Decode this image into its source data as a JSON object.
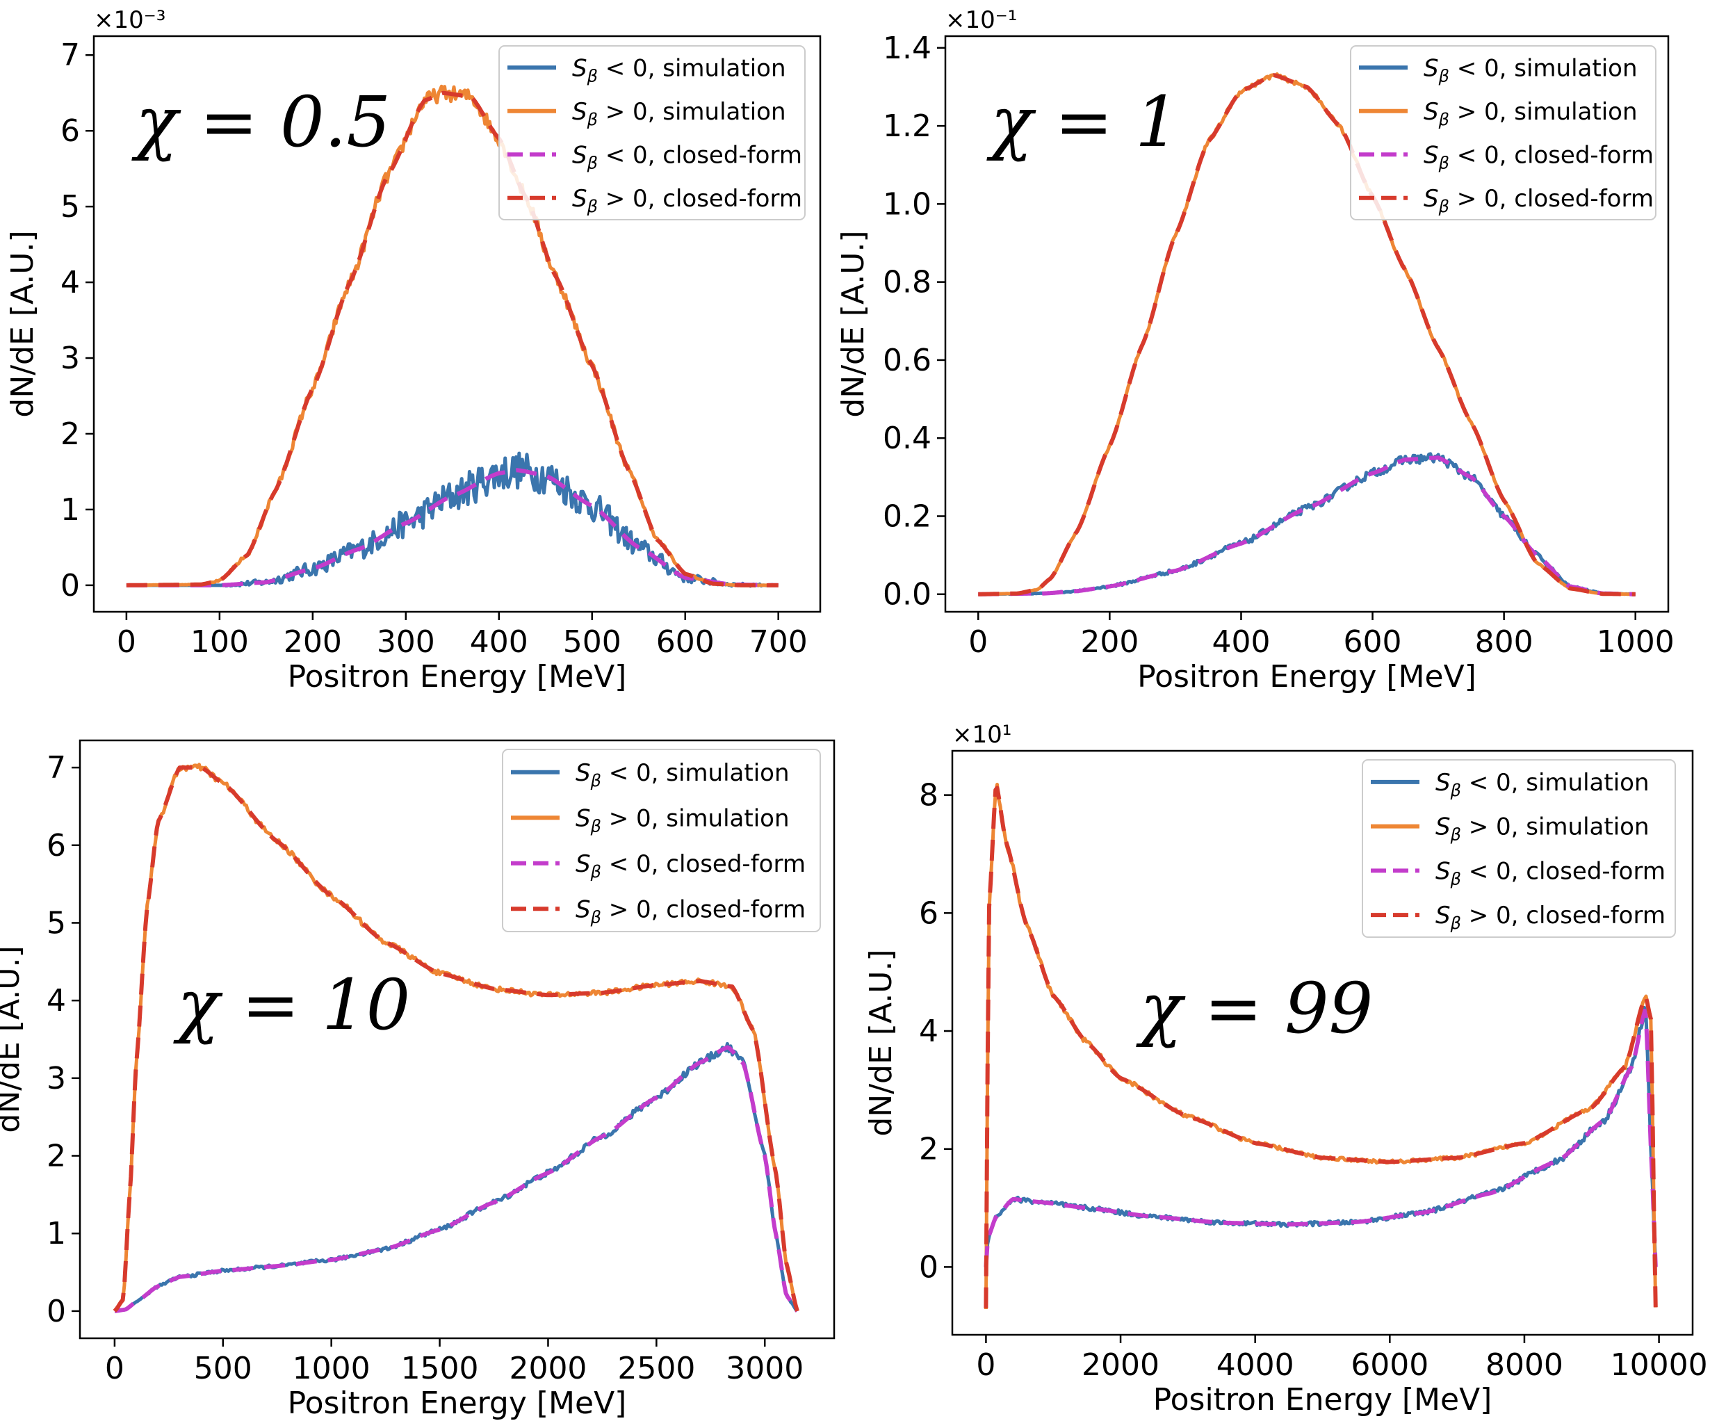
{
  "figure": {
    "description_free": true
  },
  "legend_entries": [
    {
      "label": "S_β < 0, simulation",
      "sym": "S",
      "sub": "β",
      "rel": " < 0, simulation",
      "color": "#3a75ad",
      "dash": "solid"
    },
    {
      "label": "S_β > 0, simulation",
      "sym": "S",
      "sub": "β",
      "rel": " > 0, simulation",
      "color": "#ee8634",
      "dash": "solid"
    },
    {
      "label": "S_β < 0, closed-form",
      "sym": "S",
      "sub": "β",
      "rel": " < 0, closed-form",
      "color": "#c33ccb",
      "dash": "dashed"
    },
    {
      "label": "S_β > 0, closed-form",
      "sym": "S",
      "sub": "β",
      "rel": " > 0, closed-form",
      "color": "#d73a2c",
      "dash": "dashed"
    }
  ],
  "chart_data": [
    {
      "type": "line",
      "panel": "top-left",
      "annotation": "χ = 0.5",
      "xlabel": "Positron Energy [MeV]",
      "ylabel": "dN/dE [A.U.]",
      "y_multiplier": "×10⁻³",
      "xlim": [
        -35,
        745
      ],
      "ylim": [
        -0.35,
        7.25
      ],
      "xticks": [
        0,
        100,
        200,
        300,
        400,
        500,
        600,
        700
      ],
      "xtick_labels": [
        "0",
        "100",
        "200",
        "300",
        "400",
        "500",
        "600",
        "700"
      ],
      "yticks": [
        0,
        1,
        2,
        3,
        4,
        5,
        6,
        7
      ],
      "ytick_labels": [
        "0",
        "1",
        "2",
        "3",
        "4",
        "5",
        "6",
        "7"
      ],
      "legend_position": "top-right",
      "noise": [
        0.25,
        0.1
      ],
      "series": [
        {
          "name": "S_β < 0 (curve)",
          "x": [
            0,
            100,
            150,
            200,
            250,
            300,
            350,
            400,
            420,
            450,
            500,
            550,
            600,
            650,
            700
          ],
          "y": [
            0,
            0,
            0.04,
            0.22,
            0.48,
            0.82,
            1.18,
            1.48,
            1.52,
            1.45,
            1.05,
            0.5,
            0.1,
            0.01,
            0
          ]
        },
        {
          "name": "S_β > 0 (curve)",
          "x": [
            0,
            80,
            100,
            130,
            160,
            200,
            240,
            280,
            320,
            340,
            370,
            400,
            430,
            460,
            500,
            540,
            570,
            600,
            630,
            660,
            700
          ],
          "y": [
            0,
            0.01,
            0.06,
            0.4,
            1.25,
            2.6,
            4.0,
            5.4,
            6.4,
            6.5,
            6.45,
            5.9,
            5.1,
            4.1,
            2.9,
            1.5,
            0.6,
            0.15,
            0.02,
            0,
            0
          ]
        }
      ]
    },
    {
      "type": "line",
      "panel": "top-right",
      "annotation": "χ = 1",
      "xlabel": "Positron Energy [MeV]",
      "ylabel": "dN/dE [A.U.]",
      "y_multiplier": "×10⁻¹",
      "xlim": [
        -50,
        1050
      ],
      "ylim": [
        -0.045,
        1.43
      ],
      "xticks": [
        0,
        200,
        400,
        600,
        800,
        1000
      ],
      "xtick_labels": [
        "0",
        "200",
        "400",
        "600",
        "800",
        "1000"
      ],
      "yticks": [
        0,
        0.2,
        0.4,
        0.6,
        0.8,
        1.0,
        1.2,
        1.4
      ],
      "ytick_labels": [
        "0.0",
        "0.2",
        "0.4",
        "0.6",
        "0.8",
        "1.0",
        "1.2",
        "1.4"
      ],
      "legend_position": "top-right",
      "noise": [
        0.012,
        0.005
      ],
      "series": [
        {
          "name": "S_β < 0 (curve)",
          "x": [
            0,
            100,
            150,
            200,
            300,
            400,
            500,
            600,
            650,
            700,
            750,
            800,
            850,
            900,
            950,
            1000
          ],
          "y": [
            0,
            0.002,
            0.008,
            0.02,
            0.06,
            0.13,
            0.22,
            0.31,
            0.345,
            0.35,
            0.3,
            0.2,
            0.1,
            0.02,
            0.002,
            0
          ]
        },
        {
          "name": "S_β > 0 (curve)",
          "x": [
            0,
            60,
            90,
            110,
            150,
            200,
            250,
            300,
            350,
            400,
            450,
            500,
            550,
            600,
            650,
            700,
            750,
            800,
            850,
            900,
            950,
            1000
          ],
          "y": [
            0,
            0.002,
            0.012,
            0.04,
            0.16,
            0.38,
            0.64,
            0.92,
            1.16,
            1.29,
            1.33,
            1.3,
            1.2,
            1.02,
            0.83,
            0.63,
            0.44,
            0.24,
            0.08,
            0.015,
            0.001,
            0
          ]
        }
      ]
    },
    {
      "type": "line",
      "panel": "bottom-left",
      "annotation": "χ = 10",
      "xlabel": "Positron Energy [MeV]",
      "ylabel": "dN/dE [A.U.]",
      "y_multiplier": "",
      "xlim": [
        -160,
        3320
      ],
      "ylim": [
        -0.35,
        7.35
      ],
      "xticks": [
        0,
        500,
        1000,
        1500,
        2000,
        2500,
        3000
      ],
      "xtick_labels": [
        "0",
        "500",
        "1000",
        "1500",
        "2000",
        "2500",
        "3000"
      ],
      "yticks": [
        0,
        1,
        2,
        3,
        4,
        5,
        6,
        7
      ],
      "ytick_labels": [
        "0",
        "1",
        "2",
        "3",
        "4",
        "5",
        "6",
        "7"
      ],
      "legend_position": "top-right",
      "noise": [
        0.05,
        0.04
      ],
      "series": [
        {
          "name": "S_β < 0 (curve)",
          "x": [
            0,
            50,
            100,
            200,
            300,
            500,
            750,
            1000,
            1250,
            1500,
            1750,
            2000,
            2250,
            2500,
            2700,
            2830,
            2900,
            3000,
            3050,
            3100,
            3150
          ],
          "y": [
            0,
            0.02,
            0.12,
            0.32,
            0.44,
            0.52,
            0.58,
            0.66,
            0.8,
            1.05,
            1.4,
            1.78,
            2.25,
            2.75,
            3.2,
            3.4,
            3.2,
            2.0,
            1.0,
            0.2,
            0
          ]
        },
        {
          "name": "S_β > 0 (curve)",
          "x": [
            0,
            40,
            70,
            100,
            150,
            200,
            300,
            400,
            500,
            750,
            1000,
            1250,
            1500,
            1750,
            2000,
            2250,
            2500,
            2700,
            2850,
            2950,
            3050,
            3100,
            3150
          ],
          "y": [
            0,
            0.15,
            1.5,
            3.2,
            5.2,
            6.3,
            7.0,
            7.0,
            6.8,
            6.05,
            5.35,
            4.75,
            4.35,
            4.15,
            4.07,
            4.1,
            4.2,
            4.25,
            4.18,
            3.6,
            1.8,
            0.6,
            0
          ]
        }
      ]
    },
    {
      "type": "line",
      "panel": "bottom-right",
      "annotation": "χ = 99",
      "xlabel": "Positron Energy [MeV]",
      "ylabel": "dN/dE [A.U.]",
      "y_multiplier": "×10¹",
      "xlim": [
        -500,
        10500
      ],
      "ylim": [
        -1.15,
        8.75
      ],
      "xticks": [
        0,
        2000,
        4000,
        6000,
        8000,
        10000
      ],
      "xtick_labels": [
        "0",
        "2000",
        "4000",
        "6000",
        "8000",
        "10000"
      ],
      "yticks": [
        0,
        2,
        4,
        6,
        8
      ],
      "ytick_labels": [
        "0",
        "2",
        "4",
        "6",
        "8"
      ],
      "legend_position": "top-right",
      "noise": [
        0.08,
        0.06
      ],
      "series": [
        {
          "name": "S_β < 0 (curve)",
          "x": [
            0,
            30,
            150,
            400,
            800,
            1500,
            2500,
            3500,
            4500,
            5500,
            6500,
            7500,
            8500,
            9200,
            9600,
            9800,
            9900,
            9950
          ],
          "y": [
            0,
            0.5,
            0.85,
            1.15,
            1.1,
            1.0,
            0.85,
            0.75,
            0.72,
            0.76,
            0.92,
            1.25,
            1.8,
            2.5,
            3.4,
            4.4,
            1.5,
            0
          ]
        },
        {
          "name": "S_β > 0 (curve)",
          "x": [
            0,
            40,
            150,
            300,
            600,
            1000,
            1500,
            2000,
            3000,
            4000,
            5000,
            6000,
            7000,
            8000,
            9000,
            9500,
            9800,
            9880,
            9950
          ],
          "y": [
            -0.7,
            6.0,
            8.2,
            7.2,
            5.8,
            4.6,
            3.8,
            3.2,
            2.55,
            2.1,
            1.85,
            1.78,
            1.85,
            2.1,
            2.7,
            3.4,
            4.6,
            4.2,
            -0.7
          ]
        }
      ]
    }
  ]
}
